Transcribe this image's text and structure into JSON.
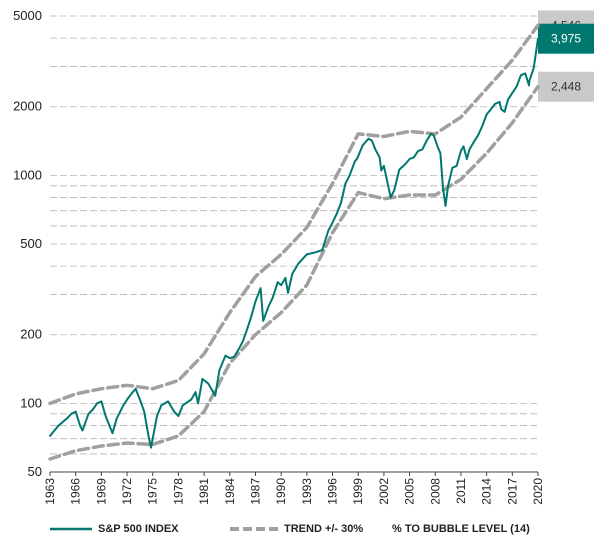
{
  "chart_data": {
    "type": "line",
    "y_scale": "log",
    "ylim": [
      50,
      5000
    ],
    "xlim": [
      1963,
      2020
    ],
    "y_ticks": [
      50,
      100,
      200,
      500,
      1000,
      2000,
      5000
    ],
    "y_tick_labels": [
      "50",
      "100",
      "200",
      "500",
      "1000",
      "2000",
      "5000"
    ],
    "x_ticks": [
      1963,
      1966,
      1969,
      1972,
      1975,
      1978,
      1981,
      1984,
      1987,
      1990,
      1993,
      1996,
      1999,
      2002,
      2005,
      2008,
      2011,
      2014,
      2017,
      2020
    ],
    "x_tick_labels": [
      "1963",
      "1966",
      "1969",
      "1972",
      "1975",
      "1978",
      "1981",
      "1984",
      "1987",
      "1990",
      "1993",
      "1996",
      "1999",
      "2002",
      "2005",
      "2008",
      "2011",
      "2014",
      "2017",
      "2020"
    ],
    "grid": "horizontal dashed",
    "series": [
      {
        "name": "S&P 500 INDEX",
        "color": "#00776f",
        "style": "solid",
        "x": [
          1963.0,
          1964.0,
          1965.0,
          1965.5,
          1966.0,
          1966.5,
          1966.8,
          1967.5,
          1968.0,
          1968.5,
          1969.0,
          1969.5,
          1970.3,
          1970.8,
          1971.5,
          1972.0,
          1972.5,
          1973.0,
          1973.5,
          1974.0,
          1974.5,
          1974.8,
          1975.0,
          1975.5,
          1976.0,
          1976.8,
          1977.5,
          1978.0,
          1978.5,
          1979.5,
          1980.0,
          1980.3,
          1980.8,
          1981.5,
          1982.3,
          1982.8,
          1983.5,
          1984.0,
          1984.5,
          1985.0,
          1985.5,
          1986.0,
          1986.5,
          1987.0,
          1987.6,
          1987.9,
          1988.5,
          1989.0,
          1989.6,
          1990.0,
          1990.5,
          1990.8,
          1991.3,
          1992.0,
          1993.0,
          1994.0,
          1994.8,
          1995.5,
          1996.0,
          1996.5,
          1997.0,
          1997.5,
          1998.0,
          1998.6,
          1998.9,
          1999.5,
          2000.2,
          2000.6,
          2001.0,
          2001.5,
          2001.7,
          2002.0,
          2002.5,
          2002.8,
          2003.2,
          2003.8,
          2004.5,
          2005.0,
          2005.5,
          2006.0,
          2006.5,
          2007.0,
          2007.5,
          2007.8,
          2008.3,
          2008.6,
          2008.9,
          2009.2,
          2009.5,
          2010.0,
          2010.5,
          2011.0,
          2011.3,
          2011.7,
          2012.0,
          2012.5,
          2013.0,
          2013.5,
          2014.0,
          2014.5,
          2015.0,
          2015.5,
          2015.7,
          2016.1,
          2016.5,
          2017.0,
          2017.5,
          2018.0,
          2018.5,
          2018.95,
          2019.0,
          2019.5,
          2020.0
        ],
        "values": [
          72,
          80,
          86,
          90,
          92,
          80,
          76,
          90,
          94,
          100,
          102,
          88,
          74,
          86,
          97,
          104,
          110,
          116,
          104,
          92,
          72,
          64,
          70,
          88,
          98,
          102,
          92,
          88,
          98,
          104,
          112,
          100,
          128,
          122,
          108,
          140,
          162,
          158,
          160,
          172,
          186,
          210,
          240,
          280,
          320,
          230,
          265,
          290,
          340,
          330,
          355,
          305,
          370,
          410,
          450,
          460,
          470,
          570,
          620,
          680,
          760,
          920,
          1000,
          1150,
          1190,
          1350,
          1450,
          1420,
          1300,
          1200,
          1050,
          1100,
          900,
          800,
          860,
          1060,
          1120,
          1180,
          1200,
          1280,
          1300,
          1420,
          1520,
          1500,
          1330,
          1250,
          880,
          735,
          900,
          1080,
          1100,
          1280,
          1340,
          1180,
          1300,
          1400,
          1500,
          1650,
          1850,
          1950,
          2060,
          2100,
          1950,
          1900,
          2150,
          2300,
          2450,
          2750,
          2800,
          2480,
          2600,
          2950,
          3975
        ]
      },
      {
        "name": "TREND +/- 30%",
        "color": "#a0a0a0",
        "style": "dashed",
        "x": [
          1963,
          1966,
          1969,
          1972,
          1975,
          1978,
          1981,
          1984,
          1987,
          1990,
          1993,
          1996,
          1999,
          2002,
          2005,
          2008,
          2011,
          2014,
          2017,
          2020
        ],
        "values": [
          100,
          110,
          116,
          120,
          116,
          126,
          165,
          250,
          360,
          450,
          590,
          920,
          1520,
          1480,
          1560,
          1520,
          1800,
          2400,
          3200,
          4546
        ]
      },
      {
        "name": "TREND +/- 30% (lower)",
        "color": "#a0a0a0",
        "style": "dashed",
        "x": [
          1963,
          1966,
          1969,
          1972,
          1975,
          1978,
          1981,
          1984,
          1987,
          1990,
          1993,
          1996,
          1999,
          2002,
          2005,
          2008,
          2011,
          2014,
          2017,
          2020
        ],
        "values": [
          57,
          62,
          65,
          67,
          66,
          72,
          92,
          150,
          200,
          250,
          330,
          560,
          840,
          790,
          820,
          820,
          960,
          1250,
          1700,
          2448
        ]
      }
    ],
    "end_labels": [
      {
        "label": "4,546",
        "value": 4546,
        "color": "#c9c9c9",
        "text_color": "#333333"
      },
      {
        "label": "3,975",
        "value": 3975,
        "color": "#00776f",
        "text_color": "#ffffff"
      },
      {
        "label": "2,448",
        "value": 2448,
        "color": "#c9c9c9",
        "text_color": "#333333"
      }
    ],
    "legend": {
      "placement": "bottom",
      "items": [
        {
          "label": "S&P 500 INDEX",
          "style": "solid",
          "color": "#00776f"
        },
        {
          "label": "TREND +/- 30%",
          "style": "dashed",
          "color": "#a0a0a0"
        },
        {
          "label": "% TO BUBBLE LEVEL (14)",
          "style": "none",
          "color": ""
        }
      ]
    }
  }
}
